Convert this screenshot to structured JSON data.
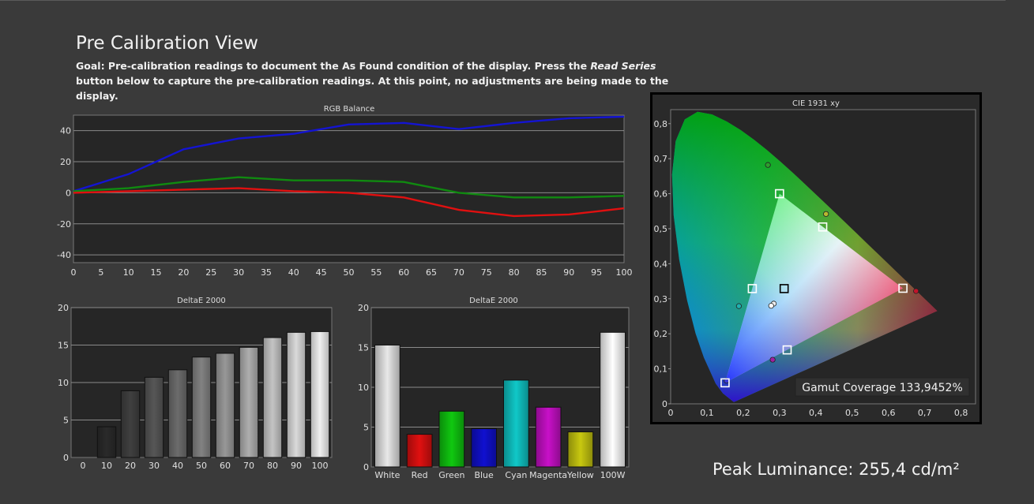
{
  "page": {
    "title": "Pre Calibration View",
    "goal_prefix": "Goal: Pre-calibration readings to document the As Found condition of the display. Press the ",
    "goal_button": "Read Series",
    "goal_suffix": " button below to capture the pre-calibration readings. At this point, no adjustments are being made to the display.",
    "peak_luminance": "Peak Luminance: 255,4 cd/m²"
  },
  "colors": {
    "red": "#e01010",
    "green": "#108a10",
    "blue": "#1414d2"
  },
  "chart_data": [
    {
      "id": "rgb",
      "type": "line",
      "title": "RGB Balance",
      "x": [
        0,
        10,
        20,
        30,
        40,
        50,
        60,
        70,
        80,
        90,
        100
      ],
      "xticks": [
        0,
        5,
        10,
        15,
        20,
        25,
        30,
        35,
        40,
        45,
        50,
        55,
        60,
        65,
        70,
        75,
        80,
        85,
        90,
        95,
        100
      ],
      "yticks": [
        40,
        20,
        0,
        -20,
        -40
      ],
      "xlim": [
        0,
        100
      ],
      "ylim": [
        -45,
        50
      ],
      "grid": true,
      "series": [
        {
          "key": "blue",
          "values": [
            1,
            12,
            28,
            35,
            38,
            44,
            45,
            41,
            45,
            48,
            49
          ]
        },
        {
          "key": "green",
          "values": [
            1,
            3,
            7,
            10,
            8,
            8,
            7,
            0,
            -3,
            -3,
            -2
          ]
        },
        {
          "key": "red",
          "values": [
            0,
            1,
            2,
            3,
            1,
            0,
            -3,
            -11,
            -15,
            -14,
            -10
          ]
        }
      ]
    },
    {
      "id": "de_gray",
      "type": "bar",
      "title": "DeltaE 2000",
      "categories": [
        "0",
        "10",
        "20",
        "30",
        "40",
        "50",
        "60",
        "70",
        "80",
        "90",
        "100"
      ],
      "values": [
        0,
        4.1,
        8.9,
        10.7,
        11.7,
        13.4,
        13.9,
        14.7,
        16.0,
        16.7,
        16.8
      ],
      "yticks": [
        20,
        15,
        10,
        5,
        0
      ],
      "ylim": [
        0,
        20
      ]
    },
    {
      "id": "de_color",
      "type": "bar",
      "title": "DeltaE 2000",
      "categories": [
        "White",
        "Red",
        "Green",
        "Blue",
        "Cyan",
        "Magenta",
        "Yellow",
        "100W"
      ],
      "values": [
        15.3,
        4.1,
        7.0,
        4.8,
        10.9,
        7.5,
        4.4,
        16.9
      ],
      "colors": [
        "#e8e8e8",
        "#e01010",
        "#10c810",
        "#1010d0",
        "#10c8c8",
        "#c810c8",
        "#c8c810",
        "#ffffff"
      ],
      "yticks": [
        20,
        15,
        10,
        5,
        0
      ],
      "ylim": [
        0,
        20
      ]
    },
    {
      "id": "cie",
      "type": "scatter",
      "title": "CIE 1931 xy",
      "xticks": [
        "0",
        "0,1",
        "0,2",
        "0,3",
        "0,4",
        "0,5",
        "0,6",
        "0,7",
        "0,8"
      ],
      "yticks": [
        "0,8",
        "0,7",
        "0,6",
        "0,5",
        "0,4",
        "0,3",
        "0,2",
        "0,1",
        "0"
      ],
      "xlim": [
        0,
        0.84
      ],
      "ylim": [
        0,
        0.84
      ],
      "targets": [
        {
          "name": "red",
          "x": 0.64,
          "y": 0.33
        },
        {
          "name": "green",
          "x": 0.3,
          "y": 0.6
        },
        {
          "name": "blue",
          "x": 0.15,
          "y": 0.06
        },
        {
          "name": "white",
          "x": 0.3127,
          "y": 0.329
        },
        {
          "name": "cyan",
          "x": 0.225,
          "y": 0.329
        },
        {
          "name": "magenta",
          "x": 0.321,
          "y": 0.154
        },
        {
          "name": "yellow",
          "x": 0.419,
          "y": 0.505
        }
      ],
      "measured": [
        {
          "name": "red",
          "x": 0.676,
          "y": 0.322,
          "color": "#c0142a"
        },
        {
          "name": "green",
          "x": 0.268,
          "y": 0.682,
          "color": "#2e9e2e"
        },
        {
          "name": "blue",
          "x": 0.154,
          "y": 0.066,
          "color": "#3a3ad8"
        },
        {
          "name": "cyan",
          "x": 0.188,
          "y": 0.279,
          "color": "#20b0b0"
        },
        {
          "name": "magenta",
          "x": 0.281,
          "y": 0.126,
          "color": "#a020a0"
        },
        {
          "name": "yellow",
          "x": 0.428,
          "y": 0.542,
          "color": "#b8b830"
        },
        {
          "name": "white",
          "x": 0.284,
          "y": 0.286,
          "color": "#f0f0f0"
        },
        {
          "name": "white-100",
          "x": 0.277,
          "y": 0.28,
          "color": "#ffffff"
        }
      ],
      "gamut_coverage": "Gamut Coverage 133,9452%"
    }
  ]
}
